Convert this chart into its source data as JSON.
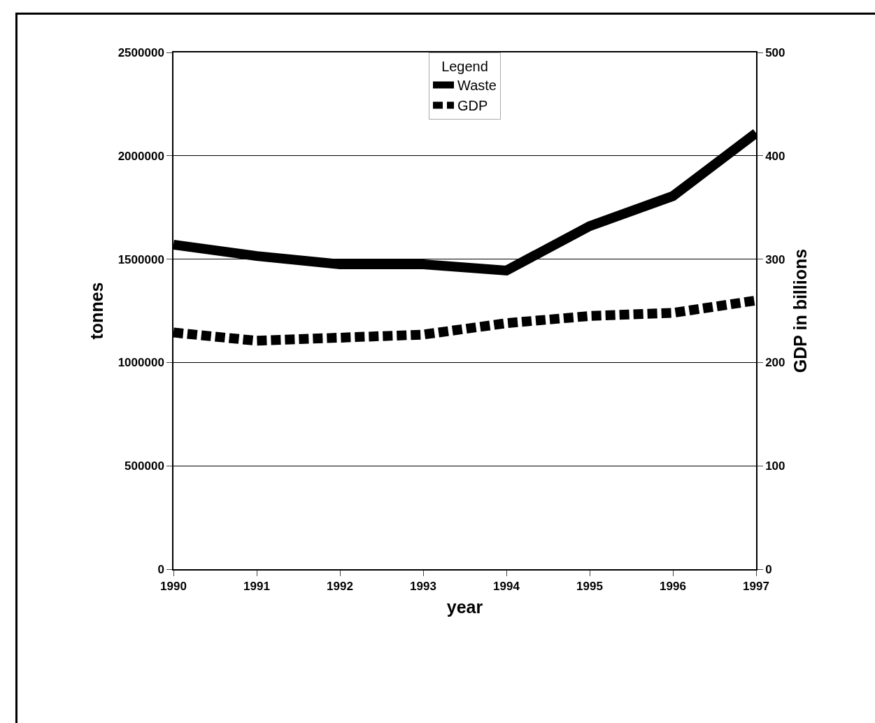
{
  "chart_data": {
    "type": "line",
    "xlabel": "year",
    "ylabel": "tonnes",
    "y2label": "GDP in billions",
    "legend_title": "Legend",
    "x": [
      1990,
      1991,
      1992,
      1993,
      1994,
      1995,
      1996,
      1997
    ],
    "xlim": [
      1990,
      1997
    ],
    "xticks": [
      1990,
      1991,
      1992,
      1993,
      1994,
      1995,
      1996,
      1997
    ],
    "ylim": [
      0,
      2500000
    ],
    "yticks": [
      0,
      500000,
      1000000,
      1500000,
      2000000,
      2500000
    ],
    "y2lim": [
      0,
      500
    ],
    "y2ticks": [
      0,
      100,
      200,
      300,
      400,
      500
    ],
    "grid": "y",
    "legend": "top",
    "marker": "none",
    "series": [
      {
        "name": "Waste",
        "color": "#000000",
        "line_style": "solid",
        "values": [
          1570000,
          1515000,
          1475000,
          1475000,
          1445000,
          1660000,
          1805000,
          2110000
        ]
      },
      {
        "name": "GDP",
        "color": "#000000",
        "line_style": "dashed",
        "axis": "y2",
        "values": [
          229,
          221,
          224,
          227,
          238,
          245,
          248,
          260
        ]
      }
    ]
  }
}
